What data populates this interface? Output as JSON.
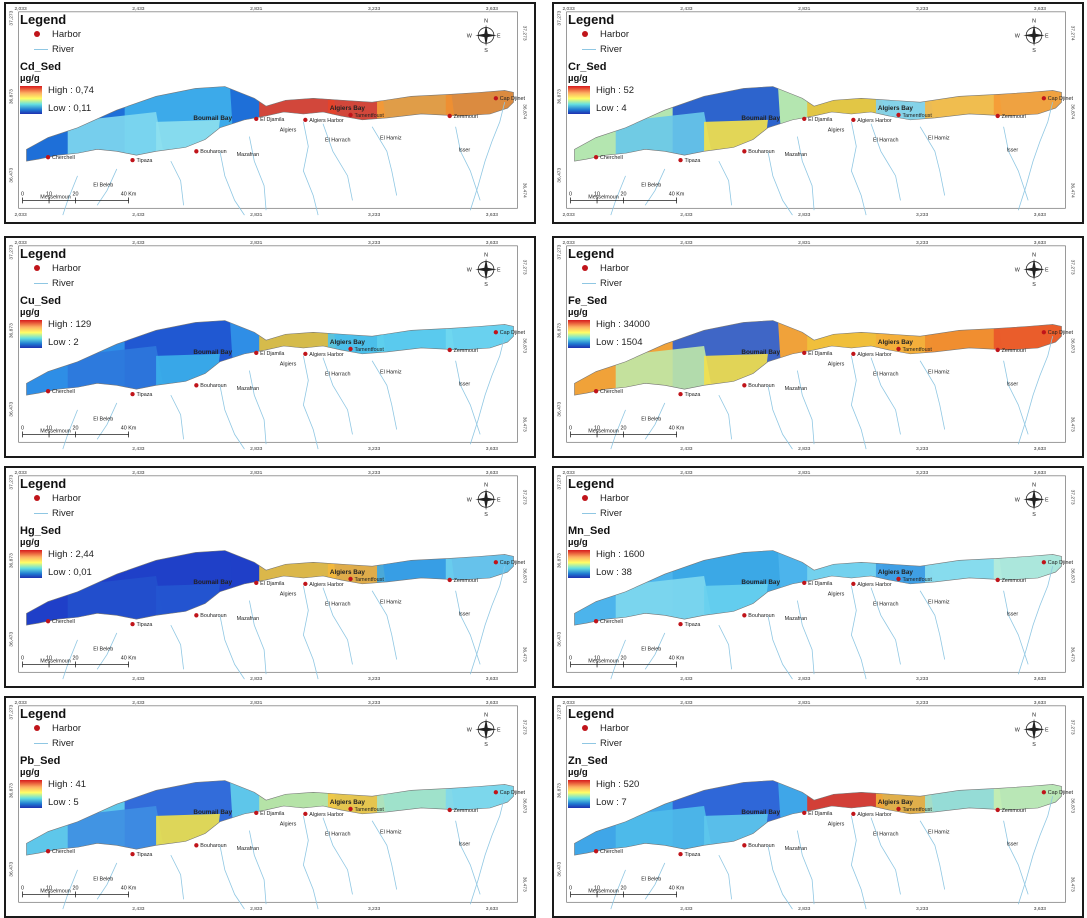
{
  "legend": {
    "title": "Legend",
    "harbor_label": "Harbor",
    "river_label": "River"
  },
  "compass": {
    "n": "N",
    "s": "S",
    "e": "E",
    "w": "W"
  },
  "scale_bar": {
    "labels": [
      "0",
      "10",
      "20",
      "40 Km"
    ]
  },
  "axes": {
    "x_ticks_top": [
      "2,033",
      "2,433",
      "2,831",
      "3,233",
      "3,633"
    ],
    "y_ticks_left": [
      "37,273",
      "36,873",
      "36,473"
    ]
  },
  "places": {
    "boumerdes_bay": "Boumail Bay",
    "algiers_bay": "Algiers Bay",
    "algiers": "Algiers",
    "algiers_harbor": "Algiers Harbor",
    "el_djamila": "El Djamila",
    "tamentfoust": "Tamentfoust",
    "zemmouri": "Zemmouri",
    "cap_djinet": "Cap Djinet",
    "cherchell": "Cherchell",
    "tipaza": "Tipaza",
    "bouharoun": "Bouharoun",
    "el_harrach": "El Harrach",
    "mazafran": "Mazafran",
    "el_hamiz": "El Hamiz",
    "isser": "Isser",
    "el_beleb": "El Beleb",
    "messelmoun": "Messelmoun"
  },
  "panels": [
    {
      "id": "cd",
      "title": "Cd_Sed",
      "unit": "µg/g",
      "high": "High : 0,74",
      "low": "Low : 0,11",
      "x_ticks_bottom": [
        "2,033",
        "2,433",
        "2,831",
        "3,233",
        "3,633"
      ],
      "y_ticks_right": [
        "37,273",
        "36,874",
        "36,474"
      ],
      "zones": [
        [
          "w1",
          "#1e6fd8"
        ],
        [
          "w2",
          "#3fb0ec"
        ],
        [
          "w3",
          "#7fd8f0"
        ],
        [
          "w4",
          "#8ee0ee"
        ],
        [
          "c1",
          "#e6422a"
        ],
        [
          "c2",
          "#e6422a"
        ],
        [
          "e1",
          "#f5a238"
        ],
        [
          "e2",
          "#f08e30"
        ]
      ]
    },
    {
      "id": "cr",
      "title": "Cr_Sed",
      "unit": "µg/g",
      "high": "High : 52",
      "low": "Low : 4",
      "x_ticks_bottom": [
        "2,033",
        "2,433",
        "2,833",
        "3,233",
        "3,633"
      ],
      "y_ticks_right": [
        "37,274",
        "36,874",
        "36,474"
      ],
      "zones": [
        [
          "w1",
          "#b4e6b0"
        ],
        [
          "w2",
          "#1e55d0"
        ],
        [
          "w3",
          "#68c8ea"
        ],
        [
          "w4",
          "#f6e24a"
        ],
        [
          "c1",
          "#e7c23a"
        ],
        [
          "c2",
          "#7fd0f0"
        ],
        [
          "e1",
          "#f6b845"
        ],
        [
          "e2",
          "#f59a35"
        ]
      ]
    },
    {
      "id": "cu",
      "title": "Cu_Sed",
      "unit": "µg/g",
      "high": "High : 129",
      "low": "Low : 2",
      "x_ticks_bottom": [
        "2,433",
        "2,833",
        "3,233",
        "3,633"
      ],
      "y_ticks_right": [
        "37,273",
        "36,873",
        "36,473"
      ],
      "zones": [
        [
          "w1",
          "#2f8ee6"
        ],
        [
          "w2",
          "#1f52cf"
        ],
        [
          "w3",
          "#2e78dc"
        ],
        [
          "w4",
          "#3bb0ea"
        ],
        [
          "c1",
          "#e8c03a"
        ],
        [
          "c2",
          "#4fc4ea"
        ],
        [
          "e1",
          "#5fd0ee"
        ],
        [
          "e2",
          "#70d8f0"
        ]
      ]
    },
    {
      "id": "fe",
      "title": "Fe_Sed",
      "unit": "µg/g",
      "high": "High : 34000",
      "low": "Low : 1504",
      "x_ticks_bottom": [
        "2,433",
        "2,833",
        "3,233",
        "3,633"
      ],
      "y_ticks_right": [
        "37,273",
        "36,873",
        "36,473"
      ],
      "zones": [
        [
          "w1",
          "#f0a23a"
        ],
        [
          "w2",
          "#2b5fd6"
        ],
        [
          "w3",
          "#bfe8a8"
        ],
        [
          "w4",
          "#f3e04a"
        ],
        [
          "c1",
          "#f0c23c"
        ],
        [
          "c2",
          "#f4b03c"
        ],
        [
          "e1",
          "#f08c30"
        ],
        [
          "e2",
          "#e9552a"
        ]
      ]
    },
    {
      "id": "hg",
      "title": "Hg_Sed",
      "unit": "µg/g",
      "high": "High : 2,44",
      "low": "Low : 0,01",
      "x_ticks_bottom": [
        "2,433",
        "2,833",
        "3,233",
        "3,633"
      ],
      "y_ticks_right": [
        "37,273",
        "36,873",
        "36,473"
      ],
      "zones": [
        [
          "w1",
          "#1f3fc8"
        ],
        [
          "w2",
          "#1f40c8"
        ],
        [
          "w3",
          "#2250cc"
        ],
        [
          "w4",
          "#2456d0"
        ],
        [
          "c1",
          "#f0c43c"
        ],
        [
          "c2",
          "#f4b83c"
        ],
        [
          "e1",
          "#3aa8e8"
        ],
        [
          "e2",
          "#6ed0ee"
        ]
      ]
    },
    {
      "id": "mn",
      "title": "Mn_Sed",
      "unit": "µg/g",
      "high": "High : 1600",
      "low": "Low : 38",
      "x_ticks_bottom": [
        "2,433",
        "2,833",
        "3,233",
        "3,633"
      ],
      "y_ticks_right": [
        "37,273",
        "36,873",
        "36,473"
      ],
      "zones": [
        [
          "w1",
          "#4cb4ec"
        ],
        [
          "w2",
          "#3aa6e6"
        ],
        [
          "w3",
          "#7fd8ee"
        ],
        [
          "w4",
          "#68d0ee"
        ],
        [
          "c1",
          "#78d4ee"
        ],
        [
          "c2",
          "#3e9ce4"
        ],
        [
          "e1",
          "#8ee0ee"
        ],
        [
          "e2",
          "#b6ecda"
        ]
      ]
    },
    {
      "id": "pb",
      "title": "Pb_Sed",
      "unit": "µg/g",
      "high": "High : 41",
      "low": "Low : 5",
      "x_ticks_bottom": [
        "2,433",
        "2,833",
        "3,233",
        "3,633"
      ],
      "y_ticks_right": [
        "37,273",
        "36,873",
        "36,473"
      ],
      "zones": [
        [
          "w1",
          "#5ec6ea"
        ],
        [
          "w2",
          "#2d62d8"
        ],
        [
          "w3",
          "#3e8ee2"
        ],
        [
          "w4",
          "#f0e24a"
        ],
        [
          "c1",
          "#bfe6a0"
        ],
        [
          "c2",
          "#f4c43e"
        ],
        [
          "e1",
          "#a6e4c8"
        ],
        [
          "e2",
          "#7fd8ec"
        ]
      ]
    },
    {
      "id": "zn",
      "title": "Zn_Sed",
      "unit": "µg/g",
      "high": "High : 520",
      "low": "Low : 7",
      "x_ticks_bottom": [
        "2,433",
        "2,833",
        "3,233",
        "3,633"
      ],
      "y_ticks_right": [
        "37,273",
        "36,873",
        "36,473"
      ],
      "zones": [
        [
          "w1",
          "#3fa6e8"
        ],
        [
          "w2",
          "#2e60d6"
        ],
        [
          "w3",
          "#4fbcea"
        ],
        [
          "w4",
          "#5ec8ec"
        ],
        [
          "c1",
          "#e23424"
        ],
        [
          "c2",
          "#f2b03a"
        ],
        [
          "e1",
          "#9ee2d4"
        ],
        [
          "e2",
          "#c6eeb0"
        ]
      ]
    }
  ]
}
